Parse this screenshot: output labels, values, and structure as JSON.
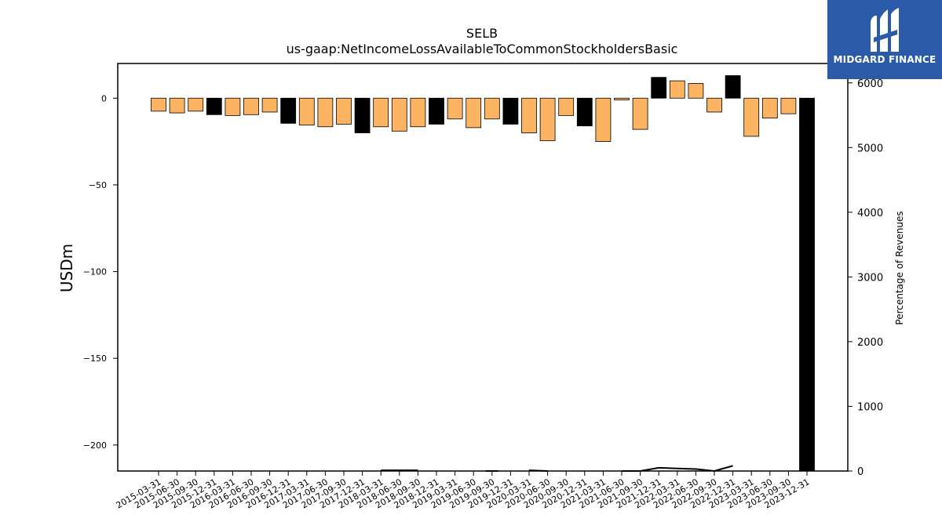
{
  "brand": {
    "name": "MIDGARD FINANCE",
    "logo_icon": "midgard-logo-icon",
    "color": "#2a5aa8"
  },
  "chart_data": {
    "type": "bar",
    "title": "SELB",
    "subtitle": "us-gaap:NetIncomeLossAvailableToCommonStockholdersBasic",
    "ylabel": "USDm",
    "y2label": "Percentage of Revenues",
    "ylim": [
      -215,
      20
    ],
    "y2lim": [
      0,
      6300
    ],
    "yticks": [
      0,
      -50,
      -100,
      -150,
      -200
    ],
    "y2ticks": [
      0,
      1000,
      2000,
      3000,
      4000,
      5000,
      6000
    ],
    "colors": {
      "positive_quarter": "#fdb462",
      "q4": "#000000",
      "line": "#000000"
    },
    "categories": [
      "2015-03-31",
      "2015-06-30",
      "2015-09-30",
      "2015-12-31",
      "2016-03-31",
      "2016-06-30",
      "2016-09-30",
      "2016-12-31",
      "2017-03-31",
      "2017-06-30",
      "2017-09-30",
      "2017-12-31",
      "2018-03-31",
      "2018-06-30",
      "2018-09-30",
      "2018-12-31",
      "2019-03-31",
      "2019-06-30",
      "2019-09-30",
      "2019-12-31",
      "2020-03-31",
      "2020-06-30",
      "2020-09-30",
      "2020-12-31",
      "2021-03-31",
      "2021-06-30",
      "2021-09-30",
      "2021-12-31",
      "2022-03-31",
      "2022-06-30",
      "2022-09-30",
      "2022-12-31",
      "2023-03-31",
      "2023-06-30",
      "2023-09-30",
      "2023-12-31"
    ],
    "values": [
      -7.5,
      -8.5,
      -7.5,
      -9.5,
      -10,
      -9.5,
      -8,
      -14.5,
      -15.5,
      -16.5,
      -15,
      -20,
      -16.5,
      -19,
      -16.5,
      -15,
      -12,
      -17,
      -12,
      -15,
      -20,
      -24.5,
      -10,
      -16,
      -25,
      -1,
      -18,
      12,
      10,
      8.5,
      -8,
      13,
      -22,
      -11.5,
      -9,
      -215
    ],
    "highlight": [
      false,
      false,
      false,
      true,
      false,
      false,
      false,
      true,
      false,
      false,
      false,
      true,
      false,
      false,
      false,
      true,
      false,
      false,
      false,
      true,
      false,
      false,
      false,
      true,
      false,
      false,
      false,
      true,
      false,
      false,
      false,
      true,
      false,
      false,
      false,
      true
    ],
    "line_values": [
      null,
      null,
      null,
      null,
      null,
      null,
      null,
      null,
      null,
      null,
      null,
      null,
      10,
      10,
      10,
      null,
      null,
      null,
      0,
      null,
      10,
      0,
      null,
      null,
      null,
      0,
      0,
      50,
      40,
      30,
      -10,
      80,
      null,
      null,
      null,
      null
    ],
    "grid": false,
    "legend": "none"
  }
}
